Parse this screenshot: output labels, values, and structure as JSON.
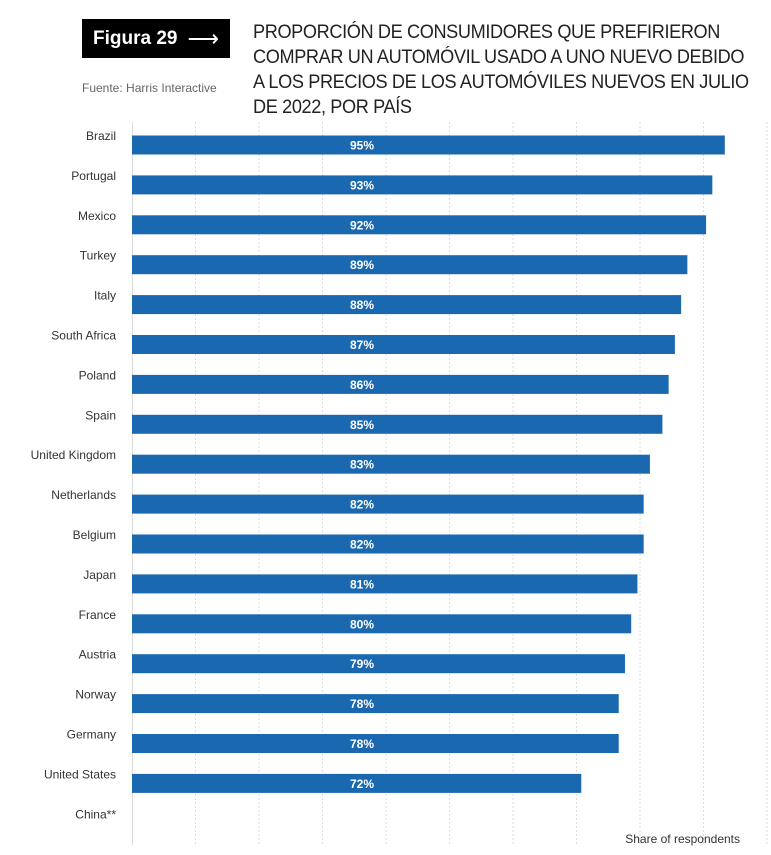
{
  "figure_label": "Figura 29",
  "figure_arrow_icon": "right-arrow-icon",
  "source": "Fuente: Harris Interactive",
  "title_lines": [
    "PROPORCIÓN DE CONSUMIDORES QUE PREFIRIERON",
    "COMPRAR UN AUTOMÓVIL USADO A UNO NUEVO DEBIDO",
    "A LOS PRECIOS DE LOS AUTOMÓVILES NUEVOS EN JULIO",
    "DE 2022, POR PAÍS"
  ],
  "chart_data": {
    "type": "bar",
    "orientation": "horizontal",
    "categories": [
      "Brazil",
      "Portugal",
      "Mexico",
      "Turkey",
      "Italy",
      "South Africa",
      "Poland",
      "Spain",
      "United Kingdom",
      "Netherlands",
      "Belgium",
      "Japan",
      "France",
      "Austria",
      "Norway",
      "Germany",
      "United States",
      "China**"
    ],
    "values": [
      95,
      93,
      92,
      89,
      88,
      87,
      86,
      85,
      83,
      82,
      82,
      81,
      80,
      79,
      78,
      78,
      72,
      null
    ],
    "data_labels": [
      "95%",
      "93%",
      "92%",
      "89%",
      "88%",
      "87%",
      "86%",
      "85%",
      "83%",
      "82%",
      "82%",
      "81%",
      "80%",
      "79%",
      "78%",
      "78%",
      "72%",
      ""
    ],
    "xlabel": "Share of respondents",
    "xlim": [
      0,
      100
    ],
    "grid": true,
    "bar_color": "#1a69b0"
  }
}
